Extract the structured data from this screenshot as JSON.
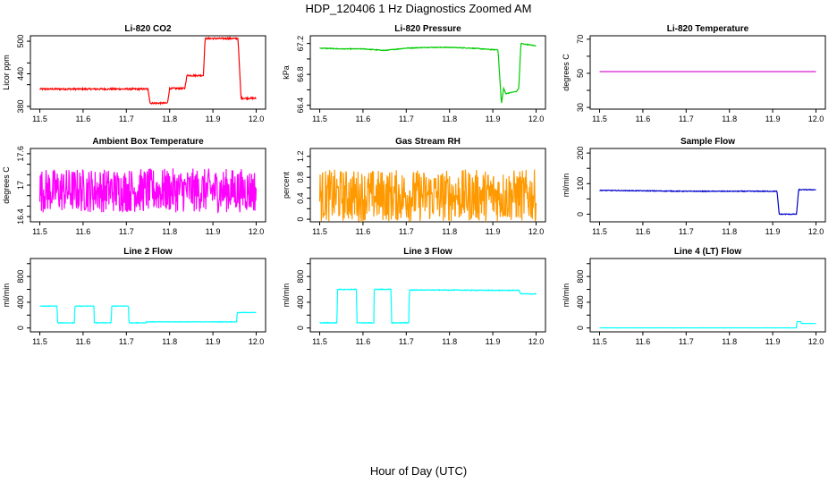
{
  "figure": {
    "title": "HDP_120406  1 Hz Diagnostics Zoomed AM",
    "xlabel": "Hour of Day (UTC)"
  },
  "chart_data": [
    {
      "type": "line",
      "title": "Li-820 CO2",
      "ylabel": "Licor ppm",
      "color": "#ff0000",
      "xlim": [
        11.5,
        12.0
      ],
      "ylim": [
        375,
        510
      ],
      "xticks": [
        "11.5",
        "11.6",
        "11.7",
        "11.8",
        "11.9",
        "12.0"
      ],
      "yticks": [
        380,
        440,
        500
      ],
      "yticks_minor": [
        420,
        460
      ],
      "x": [
        11.5,
        11.75,
        11.755,
        11.795,
        11.8,
        11.835,
        11.84,
        11.878,
        11.882,
        11.958,
        11.965,
        12.0
      ],
      "y": [
        412,
        412,
        386,
        386,
        413,
        413,
        437,
        437,
        505,
        505,
        395,
        395
      ],
      "noise": 1.5
    },
    {
      "type": "line",
      "title": "Li-820 Pressure",
      "ylabel": "kPa",
      "color": "#00cc00",
      "xlim": [
        11.5,
        12.0
      ],
      "ylim": [
        66.35,
        67.3
      ],
      "xticks": [
        "11.5",
        "11.6",
        "11.7",
        "11.8",
        "11.9",
        "12.0"
      ],
      "yticks": [
        66.4,
        66.8,
        67.2
      ],
      "yticks_minor": [
        66.6,
        67.0
      ],
      "x": [
        11.5,
        11.55,
        11.6,
        11.65,
        11.7,
        11.75,
        11.8,
        11.85,
        11.9,
        11.912,
        11.92,
        11.925,
        11.93,
        11.955,
        11.96,
        11.965,
        11.975,
        12.0
      ],
      "y": [
        67.14,
        67.13,
        67.13,
        67.11,
        67.14,
        67.15,
        67.15,
        67.14,
        67.12,
        67.12,
        66.42,
        66.62,
        66.55,
        66.58,
        66.62,
        67.2,
        67.19,
        67.17
      ],
      "noise": 0.005
    },
    {
      "type": "line",
      "title": "Li-820 Temperature",
      "ylabel": "degrees C",
      "color": "#cc00cc",
      "xlim": [
        11.5,
        12.0
      ],
      "ylim": [
        29,
        72
      ],
      "xticks": [
        "11.5",
        "11.6",
        "11.7",
        "11.8",
        "11.9",
        "12.0"
      ],
      "yticks": [
        30,
        50,
        70
      ],
      "yticks_minor": [
        40,
        60
      ],
      "x": [
        11.5,
        12.0
      ],
      "y": [
        51,
        51
      ],
      "noise": 0
    },
    {
      "type": "line",
      "title": "Ambient Box Temperature",
      "ylabel": "degrees C",
      "color": "#ff00ff",
      "xlim": [
        11.5,
        12.0
      ],
      "ylim": [
        16.3,
        17.7
      ],
      "xticks": [
        "11.5",
        "11.6",
        "11.7",
        "11.8",
        "11.9",
        "12.0"
      ],
      "yticks": [
        16.4,
        17.0,
        17.6
      ],
      "yticks_minor": [
        16.6,
        16.8,
        17.2,
        17.4
      ],
      "x": [
        11.5,
        12.0
      ],
      "y": [
        16.9,
        16.9
      ],
      "noise": 0.42
    },
    {
      "type": "line",
      "title": "Gas Stream RH",
      "ylabel": "percent",
      "color": "#ff9900",
      "xlim": [
        11.5,
        12.0
      ],
      "ylim": [
        -0.05,
        1.35
      ],
      "xticks": [
        "11.5",
        "11.6",
        "11.7",
        "11.8",
        "11.9",
        "12.0"
      ],
      "yticks": [
        0.0,
        0.4,
        0.8,
        1.2
      ],
      "yticks_minor": [
        0.2,
        0.6,
        1.0
      ],
      "x": [
        11.5,
        12.0
      ],
      "y": [
        0.45,
        0.45
      ],
      "noise": 0.5
    },
    {
      "type": "line",
      "title": "Sample Flow",
      "ylabel": "ml/min",
      "color": "#0000cc",
      "xlim": [
        11.5,
        12.0
      ],
      "ylim": [
        -25,
        215
      ],
      "xticks": [
        "11.5",
        "11.6",
        "11.7",
        "11.8",
        "11.9",
        "12.0"
      ],
      "yticks": [
        0,
        100,
        200
      ],
      "yticks_minor": [
        50,
        150
      ],
      "x": [
        11.5,
        11.7,
        11.91,
        11.915,
        11.955,
        11.96,
        12.0
      ],
      "y": [
        78,
        75,
        75,
        0,
        0,
        80,
        80
      ],
      "noise": 1.2
    },
    {
      "type": "line",
      "title": "Line 2 Flow",
      "ylabel": "ml/min",
      "color": "#00ffff",
      "xlim": [
        11.5,
        12.0
      ],
      "ylim": [
        -60,
        1080
      ],
      "xticks": [
        "11.5",
        "11.6",
        "11.7",
        "11.8",
        "11.9",
        "12.0"
      ],
      "yticks": [
        0,
        400,
        800
      ],
      "yticks_minor": [
        200,
        600,
        1000
      ],
      "x": [
        11.5,
        11.54,
        11.541,
        11.58,
        11.581,
        11.625,
        11.626,
        11.665,
        11.666,
        11.705,
        11.706,
        11.745,
        11.746,
        11.955,
        11.956,
        12.0
      ],
      "y": [
        340,
        340,
        80,
        80,
        340,
        340,
        80,
        80,
        340,
        340,
        80,
        80,
        95,
        95,
        240,
        240
      ],
      "noise": 4
    },
    {
      "type": "line",
      "title": "Line 3 Flow",
      "ylabel": "ml/min",
      "color": "#00ffff",
      "xlim": [
        11.5,
        12.0
      ],
      "ylim": [
        -60,
        1080
      ],
      "xticks": [
        "11.5",
        "11.6",
        "11.7",
        "11.8",
        "11.9",
        "12.0"
      ],
      "yticks": [
        0,
        400,
        800
      ],
      "yticks_minor": [
        200,
        600,
        1000
      ],
      "x": [
        11.5,
        11.54,
        11.541,
        11.585,
        11.586,
        11.625,
        11.626,
        11.665,
        11.666,
        11.706,
        11.707,
        11.8,
        11.9,
        11.96,
        11.965,
        12.0
      ],
      "y": [
        80,
        80,
        600,
        600,
        80,
        80,
        600,
        600,
        80,
        80,
        590,
        590,
        585,
        585,
        530,
        530
      ],
      "noise": 6
    },
    {
      "type": "line",
      "title": "Line 4 (LT) Flow",
      "ylabel": "ml/min",
      "color": "#00ffff",
      "xlim": [
        11.5,
        12.0
      ],
      "ylim": [
        -60,
        1080
      ],
      "xticks": [
        "11.5",
        "11.6",
        "11.7",
        "11.8",
        "11.9",
        "12.0"
      ],
      "yticks": [
        0,
        400,
        800
      ],
      "yticks_minor": [
        200,
        600,
        1000
      ],
      "x": [
        11.5,
        11.955,
        11.956,
        11.965,
        11.966,
        12.0
      ],
      "y": [
        2,
        2,
        100,
        100,
        70,
        70
      ],
      "noise": 1
    }
  ]
}
